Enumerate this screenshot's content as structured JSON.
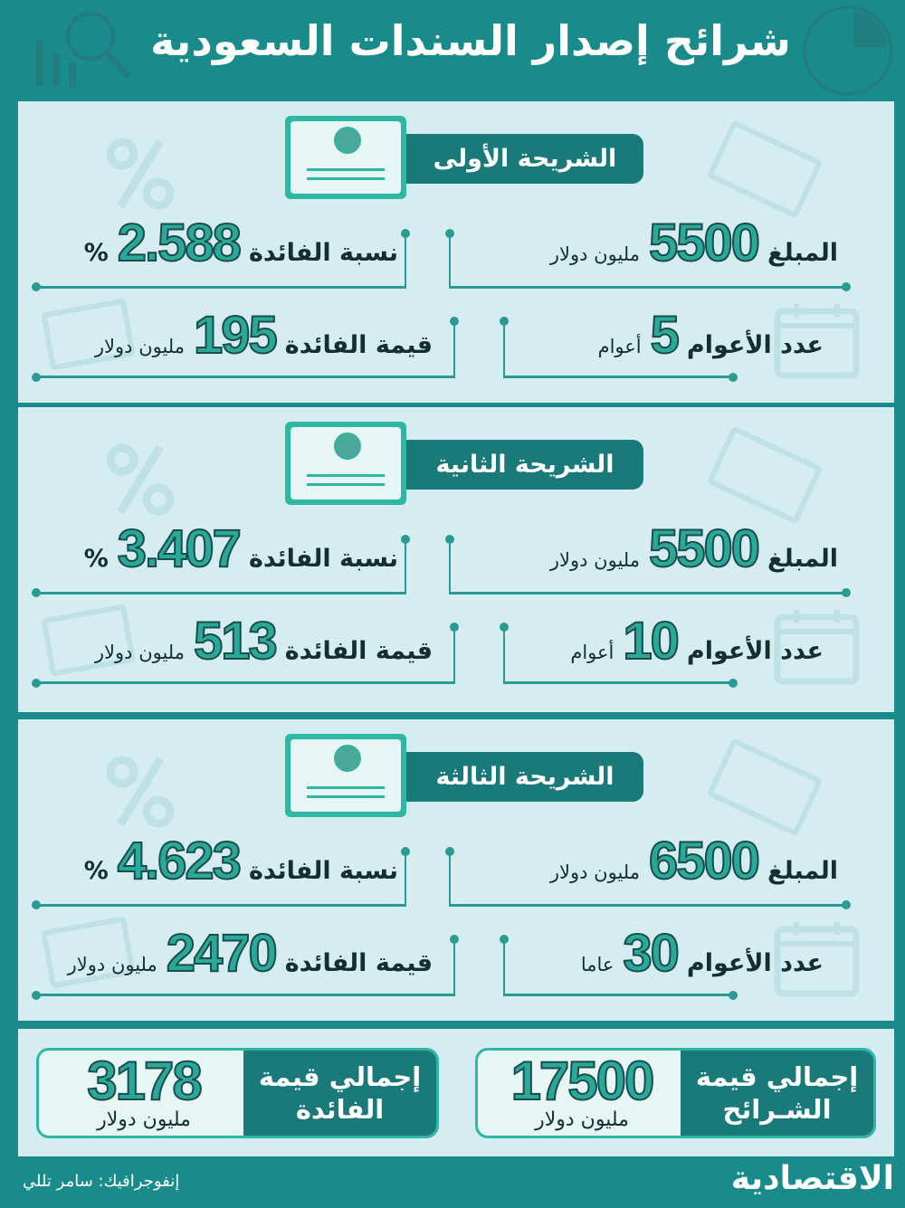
{
  "header": {
    "title": "شرائح إصدار السندات السعودية",
    "icons": [
      "money-search-chart-icon",
      "pie-chart-icon"
    ]
  },
  "tranches": [
    {
      "title": "الشريحة الأولى",
      "amount": {
        "label": "المبلغ",
        "value": "5500",
        "unit": "مليون دولار"
      },
      "years": {
        "label": "عدد الأعوام",
        "value": "5",
        "unit": "أعوام"
      },
      "rate": {
        "label": "نسبة الفائدة",
        "value": "2.588",
        "unit": "%"
      },
      "interest": {
        "label": "قيمة الفائدة",
        "value": "195",
        "unit": "مليون دولار"
      }
    },
    {
      "title": "الشريحة الثانية",
      "amount": {
        "label": "المبلغ",
        "value": "5500",
        "unit": "مليون دولار"
      },
      "years": {
        "label": "عدد الأعوام",
        "value": "10",
        "unit": "أعوام"
      },
      "rate": {
        "label": "نسبة الفائدة",
        "value": "3.407",
        "unit": "%"
      },
      "interest": {
        "label": "قيمة الفائدة",
        "value": "513",
        "unit": "مليون دولار"
      }
    },
    {
      "title": "الشريحة الثالثة",
      "amount": {
        "label": "المبلغ",
        "value": "6500",
        "unit": "مليون دولار"
      },
      "years": {
        "label": "عدد الأعوام",
        "value": "30",
        "unit": "عاما"
      },
      "rate": {
        "label": "نسبة الفائدة",
        "value": "4.623",
        "unit": "%"
      },
      "interest": {
        "label": "قيمة الفائدة",
        "value": "2470",
        "unit": "مليون دولار"
      }
    }
  ],
  "totals": {
    "tranches": {
      "label": "إجمالي قيمة الشـرائح",
      "value": "17500",
      "unit": "مليون دولار"
    },
    "interest": {
      "label": "إجمالي قيمة الفائدة",
      "value": "3178",
      "unit": "مليون دولار"
    }
  },
  "footer": {
    "credit": "إنفوجرافيك: سامر تللي",
    "logo": "الاقتصادية"
  },
  "colors": {
    "background": "#1a8b8b",
    "panel": "#d5edf0",
    "accent": "#2aa89a",
    "dark": "#1a7a7a"
  }
}
